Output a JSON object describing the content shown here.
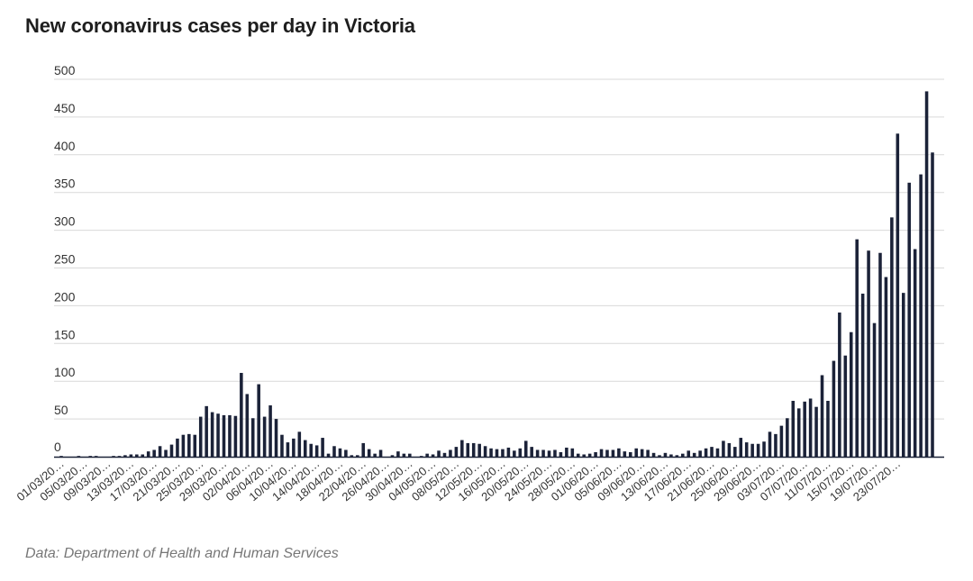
{
  "chart_data": {
    "type": "bar",
    "title": "New coronavirus cases per day in Victoria",
    "source": "Data: Department of Health and Human Services",
    "xlabel": "",
    "ylabel": "",
    "ylim": [
      0,
      500
    ],
    "yticks": [
      0,
      50,
      100,
      150,
      200,
      250,
      300,
      350,
      400,
      450,
      500
    ],
    "grid": true,
    "bar_color": "#1b2238",
    "xtick_labels": [
      "01/03/20…",
      "05/03/20…",
      "09/03/20…",
      "13/03/20…",
      "17/03/20…",
      "21/03/20…",
      "25/03/20…",
      "29/03/20…",
      "02/04/20…",
      "06/04/20…",
      "10/04/20…",
      "14/04/20…",
      "18/04/20…",
      "22/04/20…",
      "26/04/20…",
      "30/04/20…",
      "04/05/20…",
      "08/05/20…",
      "12/05/20…",
      "16/05/20…",
      "20/05/20…",
      "24/05/20…",
      "28/05/20…",
      "01/06/20…",
      "05/06/20…",
      "09/06/20…",
      "13/06/20…",
      "17/06/20…",
      "21/06/20…",
      "25/06/20…",
      "29/06/20…",
      "03/07/20…",
      "07/07/20…",
      "11/07/20…",
      "15/07/20…",
      "19/07/20…",
      "23/07/20…"
    ],
    "x_start": "2020-03-01",
    "x_end": "2020-07-25",
    "values": [
      1,
      0,
      0,
      1,
      0,
      1,
      1,
      0,
      0,
      1,
      1,
      2,
      3,
      3,
      3,
      7,
      9,
      14,
      9,
      16,
      24,
      29,
      30,
      29,
      53,
      67,
      59,
      57,
      55,
      55,
      54,
      111,
      83,
      51,
      96,
      53,
      68,
      50,
      29,
      19,
      24,
      33,
      22,
      17,
      15,
      25,
      4,
      14,
      11,
      9,
      2,
      2,
      18,
      10,
      4,
      9,
      0,
      2,
      7,
      4,
      4,
      0,
      1,
      4,
      3,
      8,
      5,
      9,
      13,
      22,
      18,
      18,
      17,
      14,
      11,
      10,
      10,
      12,
      8,
      11,
      21,
      13,
      9,
      9,
      8,
      9,
      6,
      12,
      11,
      4,
      3,
      4,
      6,
      10,
      9,
      9,
      11,
      7,
      6,
      11,
      10,
      9,
      5,
      2,
      5,
      3,
      2,
      4,
      8,
      5,
      8,
      11,
      13,
      11,
      21,
      18,
      13,
      25,
      19,
      17,
      17,
      20,
      33,
      30,
      41,
      51,
      74,
      64,
      73,
      77,
      66,
      108,
      74,
      127,
      191,
      134,
      165,
      288,
      216,
      273,
      177,
      270,
      238,
      317,
      428,
      217,
      363,
      275,
      374,
      484,
      403
    ]
  }
}
